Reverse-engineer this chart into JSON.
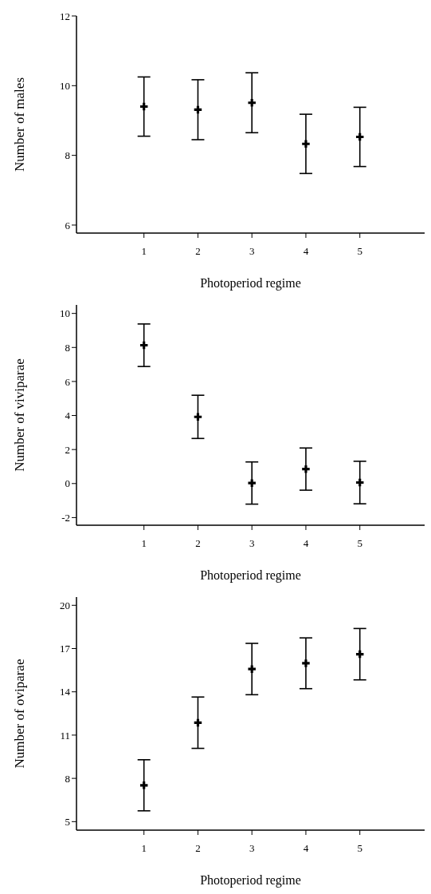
{
  "chart_data": [
    {
      "type": "scatter",
      "xlabel": "Photoperiod regime",
      "ylabel": "Number of males",
      "marker": "cross",
      "x": [
        1,
        2,
        3,
        4,
        5
      ],
      "xlim": [
        -0.25,
        6.2
      ],
      "xticks": [
        1,
        2,
        3,
        4,
        5
      ],
      "ylim": [
        5.77,
        12
      ],
      "yticks": [
        6,
        8,
        10,
        12
      ],
      "grid": false,
      "series": [
        {
          "color": "#000000",
          "values": [
            9.4,
            9.31,
            9.51,
            8.33,
            8.53
          ],
          "errors": [
            0.85,
            0.86,
            0.86,
            0.85,
            0.85
          ]
        }
      ]
    },
    {
      "type": "scatter",
      "xlabel": "Photoperiod regime",
      "ylabel": "Number of viviparae",
      "marker": "cross",
      "x": [
        1,
        2,
        3,
        4,
        5
      ],
      "xlim": [
        -0.25,
        6.2
      ],
      "xticks": [
        1,
        2,
        3,
        4,
        5
      ],
      "ylim": [
        -2.45,
        10.5
      ],
      "yticks": [
        -2,
        0,
        2,
        4,
        6,
        8,
        10
      ],
      "grid": false,
      "series": [
        {
          "color": "#000000",
          "values": [
            8.13,
            3.92,
            0.03,
            0.85,
            0.06
          ],
          "errors": [
            1.25,
            1.27,
            1.24,
            1.24,
            1.25
          ]
        }
      ]
    },
    {
      "type": "scatter",
      "xlabel": "Photoperiod regime",
      "ylabel": "Number of oviparae",
      "marker": "cross",
      "x": [
        1,
        2,
        3,
        4,
        5
      ],
      "xlim": [
        -0.25,
        6.2
      ],
      "xticks": [
        1,
        2,
        3,
        4,
        5
      ],
      "ylim": [
        4.41,
        20.57
      ],
      "yticks": [
        5,
        8,
        11,
        14,
        17,
        20
      ],
      "grid": false,
      "series": [
        {
          "color": "#000000",
          "values": [
            7.52,
            11.86,
            15.58,
            15.98,
            16.61
          ],
          "errors": [
            1.77,
            1.78,
            1.78,
            1.76,
            1.78
          ]
        }
      ]
    }
  ]
}
